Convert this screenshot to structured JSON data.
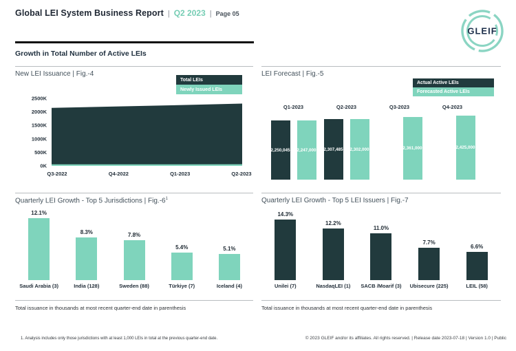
{
  "header": {
    "title": "Global LEI System Business Report",
    "separator": "|",
    "period": "Q2 2023",
    "page": "Page 05"
  },
  "logo": {
    "text": "GLEIF",
    "ring_color": "#8bd5c3",
    "text_color": "#1c2e4a"
  },
  "section": {
    "heading": "Growth in Total Number of Active LEIs"
  },
  "colors": {
    "dark": "#213a3d",
    "teal": "#7fd4bc",
    "accent_text": "#76cdb4"
  },
  "panels": {
    "fig4_title": "New LEI Issuance | Fig.-4",
    "fig5_title": "LEI Forecast | Fig.-5",
    "fig6_title": "Quarterly LEI Growth - Top 5 Jurisdictions | Fig.-6",
    "fig6_title_sup": "1",
    "fig7_title": "Quarterly LEI Growth - Top 5 LEI Issuers | Fig.-7"
  },
  "notes": {
    "issuance": "Total issuance in thousands at most recent quarter-end date in parenthesis"
  },
  "footer": {
    "footnote": "1. Analysis includes only those jurisdictions with at least 1,000 LEIs in total at the previous quarter-end date.",
    "copyright": "© 2023 GLEIF and/or its affiliates. All rights reserved. | Release date 2023-07-18 | Version 1.0 | Public"
  },
  "chart_data": [
    {
      "id": "fig4",
      "type": "area",
      "title": "New LEI Issuance",
      "x": [
        "Q3-2022",
        "Q4-2022",
        "Q1-2023",
        "Q2-2023"
      ],
      "series": [
        {
          "name": "Total LEIs",
          "color": "#213a3d",
          "values": [
            2150000,
            2200000,
            2250045,
            2307485
          ]
        },
        {
          "name": "Newly Issued LEIs",
          "color": "#7fd4bc",
          "values": [
            55000,
            57000,
            58000,
            60000
          ]
        }
      ],
      "ylim": [
        0,
        2500000
      ],
      "yticks": [
        "0K",
        "500K",
        "1000K",
        "1500K",
        "2000K",
        "2500K"
      ],
      "legend_position": "top-right",
      "grid": false
    },
    {
      "id": "fig5",
      "type": "bar",
      "title": "LEI Forecast",
      "categories": [
        "Q1-2023",
        "Q2-2023",
        "Q3-2023",
        "Q4-2023"
      ],
      "series": [
        {
          "name": "Actual Active LEIs",
          "color": "#213a3d",
          "values": [
            2250045,
            2307485,
            null,
            null
          ],
          "labels": [
            "2,250,045",
            "2,307,485",
            null,
            null
          ]
        },
        {
          "name": "Forecasted Active LEIs",
          "color": "#7fd4bc",
          "values": [
            2247000,
            2302000,
            2361000,
            2425000
          ],
          "labels": [
            "2,247,000",
            "2,302,000",
            "2,361,000",
            "2,425,000"
          ]
        }
      ],
      "legend_position": "top-right",
      "value_labels": "inside-white",
      "grid": false
    },
    {
      "id": "fig6",
      "type": "bar",
      "title": "Quarterly LEI Growth - Top 5 Jurisdictions",
      "categories": [
        "Saudi Arabia (3)",
        "India (128)",
        "Sweden (88)",
        "Türkiye (7)",
        "Iceland (4)"
      ],
      "values": [
        12.1,
        8.3,
        7.8,
        5.4,
        5.1
      ],
      "value_labels": [
        "12.1%",
        "8.3%",
        "7.8%",
        "5.4%",
        "5.1%"
      ],
      "bar_color": "#7fd4bc",
      "grid": false
    },
    {
      "id": "fig7",
      "type": "bar",
      "title": "Quarterly LEI Growth - Top 5 LEI Issuers",
      "categories": [
        "Unilei (7)",
        "NasdaqLEI (1)",
        "SACB /Moarif (3)",
        "Ubisecure (225)",
        "LEIL (58)"
      ],
      "values": [
        14.3,
        12.2,
        11.0,
        7.7,
        6.6
      ],
      "value_labels": [
        "14.3%",
        "12.2%",
        "11.0%",
        "7.7%",
        "6.6%"
      ],
      "bar_color": "#213a3d",
      "grid": false
    }
  ]
}
